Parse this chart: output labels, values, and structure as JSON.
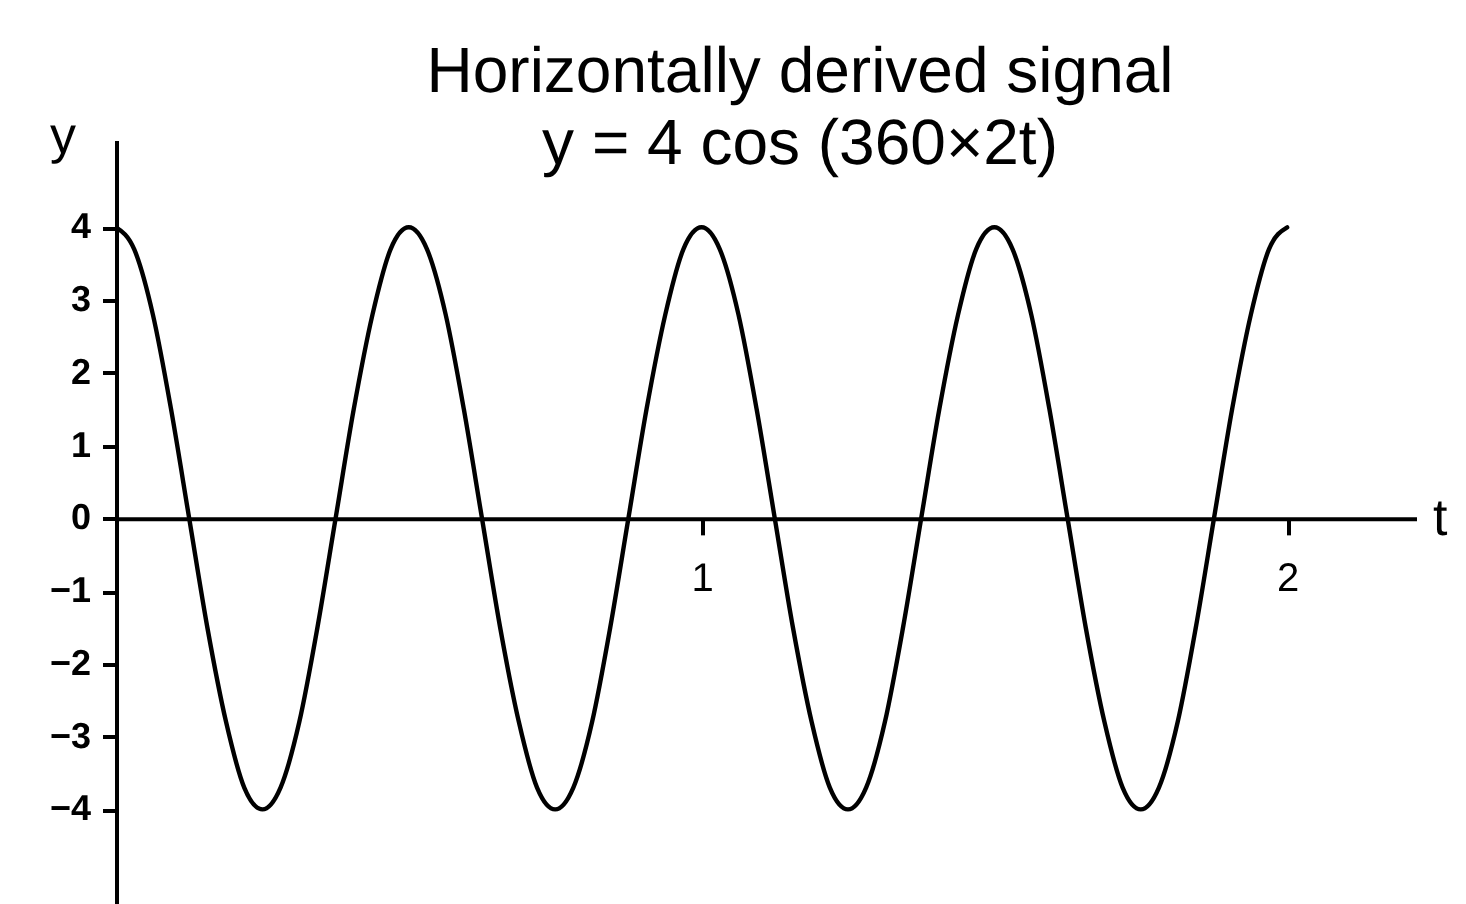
{
  "chart_data": {
    "type": "line",
    "title": "Horizontally derived signal",
    "subtitle": "y = 4 cos (360×2t)",
    "xlabel": "t",
    "ylabel": "y",
    "xlim": [
      0,
      2.22
    ],
    "ylim": [
      -5.3,
      5.2
    ],
    "xticks": [
      1,
      2
    ],
    "yticks": [
      -4,
      -3,
      -2,
      -1,
      0,
      1,
      2,
      3,
      4
    ],
    "grid": false,
    "line_style": "solid",
    "series": [
      {
        "color": "#000000",
        "x": [
          0,
          0.031,
          0.063,
          0.094,
          0.125,
          0.156,
          0.188,
          0.219,
          0.25,
          0.281,
          0.313,
          0.344,
          0.375,
          0.406,
          0.438,
          0.469,
          0.5,
          0.531,
          0.563,
          0.594,
          0.625,
          0.656,
          0.688,
          0.719,
          0.75,
          0.781,
          0.813,
          0.844,
          0.875,
          0.906,
          0.938,
          0.969,
          1,
          1.031,
          1.063,
          1.094,
          1.125,
          1.156,
          1.188,
          1.219,
          1.25,
          1.281,
          1.313,
          1.344,
          1.375,
          1.406,
          1.438,
          1.469,
          1.5,
          1.531,
          1.563,
          1.594,
          1.625,
          1.656,
          1.688,
          1.719,
          1.75,
          1.781,
          1.813,
          1.844,
          1.875,
          1.906,
          1.938,
          1.969,
          2
        ],
        "values": [
          4,
          3.7,
          2.8,
          1.5,
          0,
          -1.5,
          -2.8,
          -3.7,
          -4,
          -3.7,
          -2.8,
          -1.5,
          0,
          1.5,
          2.8,
          3.7,
          4,
          3.7,
          2.8,
          1.5,
          0,
          -1.5,
          -2.8,
          -3.7,
          -4,
          -3.7,
          -2.8,
          -1.5,
          0,
          1.5,
          2.8,
          3.7,
          4,
          3.7,
          2.8,
          1.5,
          0,
          -1.5,
          -2.8,
          -3.7,
          -4,
          -3.7,
          -2.8,
          -1.5,
          0,
          1.5,
          2.8,
          3.7,
          4,
          3.7,
          2.8,
          1.5,
          0,
          -1.5,
          -2.8,
          -3.7,
          -4,
          -3.7,
          -2.8,
          -1.5,
          0,
          1.5,
          2.8,
          3.7,
          4
        ]
      }
    ]
  }
}
